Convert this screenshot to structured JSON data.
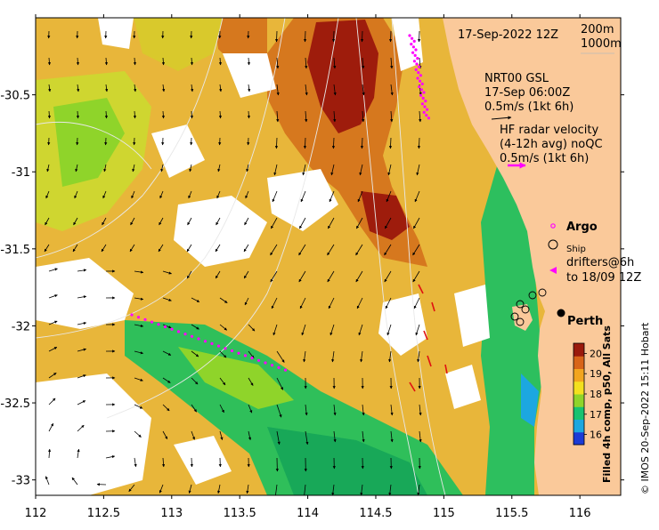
{
  "title": "17-Sep-2022 12Z",
  "axes": {
    "x_ticks": [
      "112",
      "112.5",
      "113",
      "113.5",
      "114",
      "114.5",
      "115",
      "115.5",
      "116"
    ],
    "x_values": [
      112,
      112.5,
      113,
      113.5,
      114,
      114.5,
      115,
      115.5,
      116
    ],
    "y_ticks": [
      "-30.5",
      "-31",
      "-31.5",
      "-32",
      "-32.5",
      "-33"
    ],
    "y_values": [
      -30.5,
      -31,
      -31.5,
      -32,
      -32.5,
      -33
    ],
    "lon_range": [
      112,
      116.3
    ],
    "lat_range": [
      -33.1,
      -30.0
    ]
  },
  "contours": {
    "label_a": "200m",
    "label_b": "1000m"
  },
  "legend": {
    "model_line1": "NRT00 GSL",
    "model_line2": "17-Sep 06:00Z",
    "model_line3": "0.5m/s (1kt 6h)",
    "radar_line1": "HF radar velocity",
    "radar_line2": "(4-12h avg) noQC",
    "radar_line3": "0.5m/s (1kt 6h)",
    "argo": "Argo",
    "ship": "Ship",
    "drifters_line1": "drifters@6h",
    "drifters_line2": "to 18/09 12Z",
    "radar_arrow_color": "#ff00ff",
    "argo_color": "#ff00ff"
  },
  "place": {
    "name": "Perth",
    "lon": 115.86,
    "lat": -31.95
  },
  "colorbar": {
    "ticks": [
      "20",
      "19",
      "18",
      "17",
      "16"
    ],
    "values": [
      20,
      19,
      18,
      17,
      16
    ],
    "range": [
      15.5,
      20.5
    ],
    "label": "Filled 4h comp, p50, All Sats",
    "colors": [
      "#1b3bd6",
      "#1ca7e0",
      "#18c270",
      "#8fd42a",
      "#f3e01e",
      "#f2a51e",
      "#d86418",
      "#9a1a0c"
    ]
  },
  "credit": "© IMOS 20-Sep-2022 15:11 Hobart",
  "palette": {
    "land": "#fac99a",
    "nodata": "#ffffff",
    "sst_warm": "#e8a33a",
    "sst_hot": "#9e1c0c",
    "sst_mid": "#e8d024",
    "sst_cool": "#28c068"
  }
}
